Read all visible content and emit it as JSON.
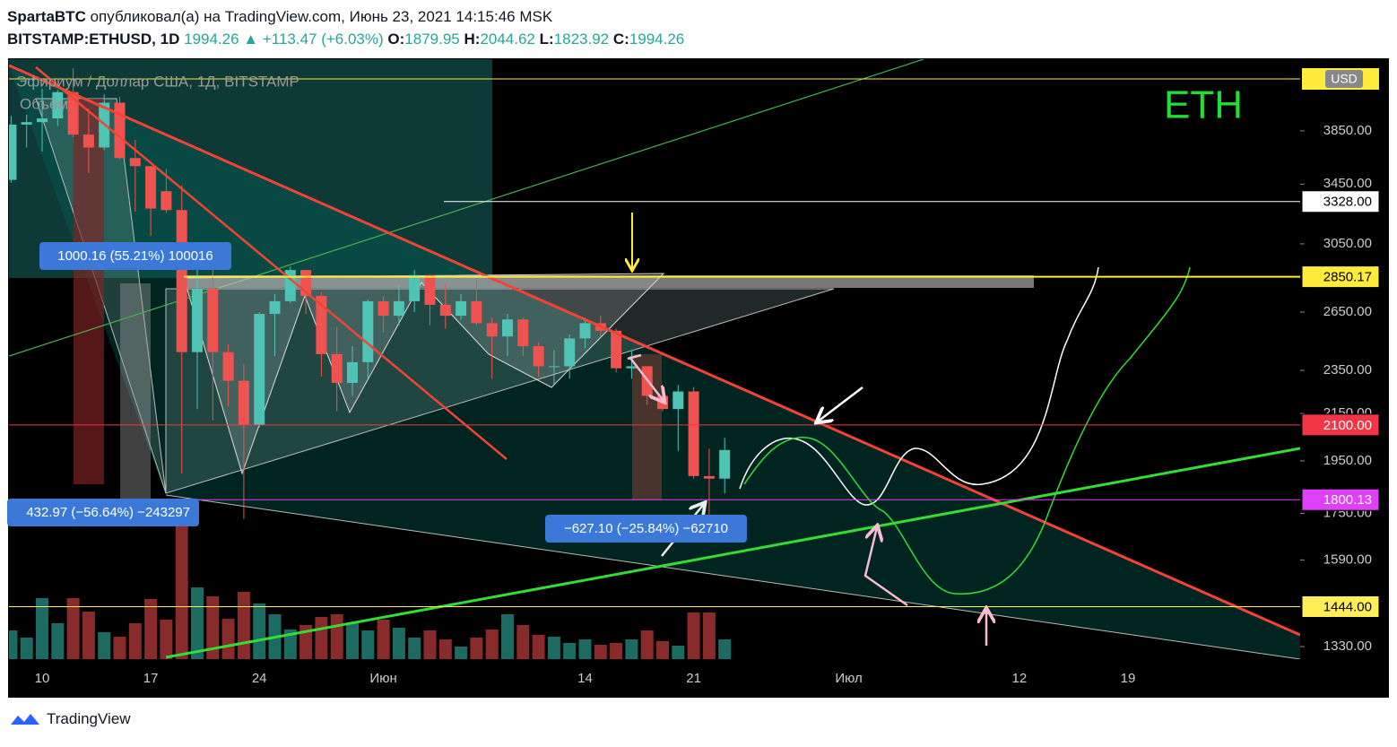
{
  "header": {
    "author": "SpartaBTC",
    "published": "опубликовал(а) на TradingView.com, Июнь 23, 2021 14:15:46 MSK",
    "symbol": "BITSTAMP:ETHUSD, 1D",
    "last": "1994.26",
    "change": "▲ +113.47 (+6.03%)",
    "o_label": "O:",
    "o": "1879.95",
    "h_label": "H:",
    "h": "2044.62",
    "l_label": "L:",
    "l": "1823.92",
    "c_label": "C:",
    "c": "1994.26"
  },
  "chart_data": {
    "type": "candlestick",
    "legend_title": "Эфириум / Доллар США, 1Д, BITSTAMP",
    "volume_label": "Объём",
    "currency": "USD",
    "annotation": "ETH",
    "log": true,
    "up_color": "#4fc3b4",
    "down_color": "#ef5350",
    "vol_up_color": "#1c6b62",
    "vol_down_color": "#8a2b2b",
    "ylim": [
      1296,
      4430
    ],
    "yticks": [
      {
        "value": 3850,
        "label": "3850.00"
      },
      {
        "value": 3450,
        "label": "3450.00"
      },
      {
        "value": 3050,
        "label": "3050.00"
      },
      {
        "value": 2650,
        "label": "2650.00"
      },
      {
        "value": 2350,
        "label": "2350.00"
      },
      {
        "value": 2150,
        "label": "2150.00"
      },
      {
        "value": 1950,
        "label": "1950.00"
      },
      {
        "value": 1750,
        "label": "1750.00"
      },
      {
        "value": 1590,
        "label": "1590.00"
      },
      {
        "value": 1330,
        "label": "1330.00"
      }
    ],
    "xtick_labels": [
      "10",
      "17",
      "24",
      "Июн",
      "14",
      "21",
      "Июл",
      "12",
      "19"
    ],
    "open": [
      3480,
      3900,
      3920,
      3950,
      4170,
      3820,
      3720,
      4080,
      3640,
      3580,
      3400,
      3270,
      2440,
      2780,
      2440,
      2300,
      2100,
      2640,
      2710,
      2890,
      2740,
      2430,
      2290,
      2390,
      2710,
      2630,
      2710,
      2860,
      2690,
      2630,
      2710,
      2590,
      2520,
      2610,
      2470,
      2370,
      2370,
      2510,
      2590,
      2550,
      2360,
      2370,
      2230,
      2170,
      2250,
      1890,
      1879.95
    ],
    "high": [
      3970,
      3980,
      4200,
      4190,
      4380,
      4030,
      4150,
      4130,
      3780,
      3580,
      3560,
      3440,
      2930,
      2940,
      2480,
      2380,
      2650,
      2750,
      2910,
      2890,
      2760,
      2570,
      2470,
      2720,
      2740,
      2800,
      2890,
      2860,
      2810,
      2750,
      2840,
      2620,
      2640,
      2620,
      2490,
      2450,
      2530,
      2620,
      2630,
      2560,
      2450,
      2370,
      2280,
      2280,
      2270,
      2000,
      2044.62
    ],
    "low": [
      3460,
      3720,
      3690,
      3890,
      3800,
      3530,
      3700,
      3630,
      3260,
      3100,
      3250,
      1900,
      2170,
      2120,
      2180,
      1730,
      2090,
      2420,
      2700,
      2640,
      2320,
      2160,
      2230,
      2310,
      2540,
      2580,
      2650,
      2580,
      2560,
      2610,
      2580,
      2310,
      2420,
      2420,
      2320,
      2280,
      2310,
      2460,
      2520,
      2340,
      2310,
      2190,
      2160,
      1990,
      1880,
      1700,
      1823.92
    ],
    "close": [
      3900,
      3920,
      3950,
      4170,
      3820,
      3720,
      4080,
      3640,
      3580,
      3280,
      3270,
      2440,
      2780,
      2440,
      2300,
      2100,
      2640,
      2710,
      2890,
      2740,
      2430,
      2290,
      2390,
      2710,
      2630,
      2710,
      2860,
      2690,
      2630,
      2710,
      2590,
      2520,
      2610,
      2470,
      2370,
      2370,
      2510,
      2590,
      2550,
      2360,
      2370,
      2230,
      2170,
      2250,
      1890,
      1880,
      1994.26
    ],
    "volume": [
      32000,
      24000,
      68000,
      40000,
      68000,
      53000,
      30000,
      25000,
      40000,
      67000,
      44000,
      165000,
      80000,
      70000,
      45000,
      75000,
      62000,
      50000,
      33000,
      38000,
      47000,
      50000,
      40000,
      32000,
      44000,
      35000,
      24000,
      32000,
      22000,
      14000,
      24000,
      33000,
      50000,
      38000,
      27000,
      25000,
      18000,
      22000,
      16000,
      18000,
      22000,
      32000,
      20000,
      15000,
      52000,
      52000,
      22000
    ],
    "price_lines": [
      {
        "value": 3328,
        "label": "3328.00",
        "color": "#ffffff",
        "text_color": "#000000"
      },
      {
        "value": 2850.17,
        "label": "2850.17",
        "color": "#ffeb3b",
        "text_color": "#000000"
      },
      {
        "value": 2100,
        "label": "2100.00",
        "color": "#f23645",
        "text_color": "#ffffff"
      },
      {
        "value": 1800.13,
        "label": "1800.13",
        "color": "#e040fb",
        "text_color": "#ffffff"
      },
      {
        "value": 1444,
        "label": "1444.00",
        "color": "#ffee58",
        "text_color": "#000000"
      }
    ],
    "measurements": [
      "1000.16 (55.21%) 100016",
      "432.97 (−56.64%) −243297",
      "−627.10 (−25.84%) −62710"
    ]
  },
  "footer": {
    "brand": "TradingView"
  }
}
